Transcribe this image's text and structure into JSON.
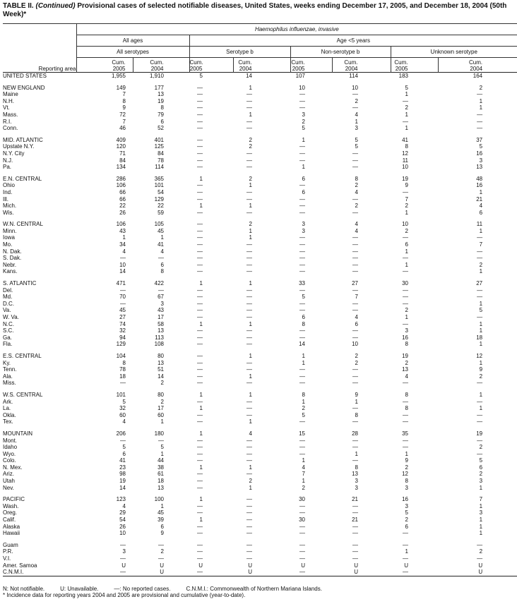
{
  "title": {
    "prefix": "TABLE II. ",
    "continued": "(Continued)",
    "text": " Provisional cases of selected notifiable diseases, United States, weeks ending December 17, 2005, and December 18, 2004 (50th Week)*"
  },
  "header": {
    "disease": "Haemophilus influenzae, invasive",
    "all_ages": "All ages",
    "age_under5": "Age <5 years",
    "all_serotypes": "All serotypes",
    "serotype_b": "Serotype b",
    "non_serotype_b": "Non-serotype b",
    "unknown_serotype": "Unknown serotype",
    "reporting_area": "Reporting area",
    "cum_cols": [
      "Cum. 2005",
      "Cum. 2004",
      "Cum. 2005",
      "Cum. 2004",
      "Cum. 2005",
      "Cum. 2004",
      "Cum. 2005",
      "Cum. 2004"
    ]
  },
  "groups": [
    [
      {
        "area": "UNITED STATES",
        "values": [
          "1,955",
          "1,910",
          "5",
          "14",
          "107",
          "114",
          "183",
          "164"
        ]
      }
    ],
    [
      {
        "area": "NEW ENGLAND",
        "values": [
          "149",
          "177",
          "—",
          "1",
          "10",
          "10",
          "5",
          "2"
        ]
      },
      {
        "area": "Maine",
        "values": [
          "7",
          "13",
          "—",
          "—",
          "—",
          "—",
          "1",
          "—"
        ]
      },
      {
        "area": "N.H.",
        "values": [
          "8",
          "19",
          "—",
          "—",
          "—",
          "2",
          "—",
          "1"
        ]
      },
      {
        "area": "Vt.",
        "values": [
          "9",
          "8",
          "—",
          "—",
          "—",
          "—",
          "2",
          "1"
        ]
      },
      {
        "area": "Mass.",
        "values": [
          "72",
          "79",
          "—",
          "1",
          "3",
          "4",
          "1",
          "—"
        ]
      },
      {
        "area": "R.I.",
        "values": [
          "7",
          "6",
          "—",
          "—",
          "2",
          "1",
          "—",
          "—"
        ]
      },
      {
        "area": "Conn.",
        "values": [
          "46",
          "52",
          "—",
          "—",
          "5",
          "3",
          "1",
          "—"
        ]
      }
    ],
    [
      {
        "area": "MID. ATLANTIC",
        "values": [
          "409",
          "401",
          "—",
          "2",
          "1",
          "5",
          "41",
          "37"
        ]
      },
      {
        "area": "Upstate N.Y.",
        "values": [
          "120",
          "125",
          "—",
          "2",
          "—",
          "5",
          "8",
          "5"
        ]
      },
      {
        "area": "N.Y. City",
        "values": [
          "71",
          "84",
          "—",
          "—",
          "—",
          "—",
          "12",
          "16"
        ]
      },
      {
        "area": "N.J.",
        "values": [
          "84",
          "78",
          "—",
          "—",
          "—",
          "—",
          "11",
          "3"
        ]
      },
      {
        "area": "Pa.",
        "values": [
          "134",
          "114",
          "—",
          "—",
          "1",
          "—",
          "10",
          "13"
        ]
      }
    ],
    [
      {
        "area": "E.N. CENTRAL",
        "values": [
          "286",
          "365",
          "1",
          "2",
          "6",
          "8",
          "19",
          "48"
        ]
      },
      {
        "area": "Ohio",
        "values": [
          "106",
          "101",
          "—",
          "1",
          "—",
          "2",
          "9",
          "16"
        ]
      },
      {
        "area": "Ind.",
        "values": [
          "66",
          "54",
          "—",
          "—",
          "6",
          "4",
          "—",
          "1"
        ]
      },
      {
        "area": "Ill.",
        "values": [
          "66",
          "129",
          "—",
          "—",
          "—",
          "—",
          "7",
          "21"
        ]
      },
      {
        "area": "Mich.",
        "values": [
          "22",
          "22",
          "1",
          "1",
          "—",
          "2",
          "2",
          "4"
        ]
      },
      {
        "area": "Wis.",
        "values": [
          "26",
          "59",
          "—",
          "—",
          "—",
          "—",
          "1",
          "6"
        ]
      }
    ],
    [
      {
        "area": "W.N. CENTRAL",
        "values": [
          "106",
          "105",
          "—",
          "2",
          "3",
          "4",
          "10",
          "11"
        ]
      },
      {
        "area": "Minn.",
        "values": [
          "43",
          "45",
          "—",
          "1",
          "3",
          "4",
          "2",
          "1"
        ]
      },
      {
        "area": "Iowa",
        "values": [
          "1",
          "1",
          "—",
          "1",
          "—",
          "—",
          "—",
          "—"
        ]
      },
      {
        "area": "Mo.",
        "values": [
          "34",
          "41",
          "—",
          "—",
          "—",
          "—",
          "6",
          "7"
        ]
      },
      {
        "area": "N. Dak.",
        "values": [
          "4",
          "4",
          "—",
          "—",
          "—",
          "—",
          "1",
          "—"
        ]
      },
      {
        "area": "S. Dak.",
        "values": [
          "—",
          "—",
          "—",
          "—",
          "—",
          "—",
          "—",
          "—"
        ]
      },
      {
        "area": "Nebr.",
        "values": [
          "10",
          "6",
          "—",
          "—",
          "—",
          "—",
          "1",
          "2"
        ]
      },
      {
        "area": "Kans.",
        "values": [
          "14",
          "8",
          "—",
          "—",
          "—",
          "—",
          "—",
          "1"
        ]
      }
    ],
    [
      {
        "area": "S. ATLANTIC",
        "values": [
          "471",
          "422",
          "1",
          "1",
          "33",
          "27",
          "30",
          "27"
        ]
      },
      {
        "area": "Del.",
        "values": [
          "—",
          "—",
          "—",
          "—",
          "—",
          "—",
          "—",
          "—"
        ]
      },
      {
        "area": "Md.",
        "values": [
          "70",
          "67",
          "—",
          "—",
          "5",
          "7",
          "—",
          "—"
        ]
      },
      {
        "area": "D.C.",
        "values": [
          "—",
          "3",
          "—",
          "—",
          "—",
          "—",
          "—",
          "1"
        ]
      },
      {
        "area": "Va.",
        "values": [
          "45",
          "43",
          "—",
          "—",
          "—",
          "—",
          "2",
          "5"
        ]
      },
      {
        "area": "W. Va.",
        "values": [
          "27",
          "17",
          "—",
          "—",
          "6",
          "4",
          "1",
          "—"
        ]
      },
      {
        "area": "N.C.",
        "values": [
          "74",
          "58",
          "1",
          "1",
          "8",
          "6",
          "—",
          "1"
        ]
      },
      {
        "area": "S.C.",
        "values": [
          "32",
          "13",
          "—",
          "—",
          "—",
          "—",
          "3",
          "1"
        ]
      },
      {
        "area": "Ga.",
        "values": [
          "94",
          "113",
          "—",
          "—",
          "—",
          "—",
          "16",
          "18"
        ]
      },
      {
        "area": "Fla.",
        "values": [
          "129",
          "108",
          "—",
          "—",
          "14",
          "10",
          "8",
          "1"
        ]
      }
    ],
    [
      {
        "area": "E.S. CENTRAL",
        "values": [
          "104",
          "80",
          "—",
          "1",
          "1",
          "2",
          "19",
          "12"
        ]
      },
      {
        "area": "Ky.",
        "values": [
          "8",
          "13",
          "—",
          "—",
          "1",
          "2",
          "2",
          "1"
        ]
      },
      {
        "area": "Tenn.",
        "values": [
          "78",
          "51",
          "—",
          "—",
          "—",
          "—",
          "13",
          "9"
        ]
      },
      {
        "area": "Ala.",
        "values": [
          "18",
          "14",
          "—",
          "1",
          "—",
          "—",
          "4",
          "2"
        ]
      },
      {
        "area": "Miss.",
        "values": [
          "—",
          "2",
          "—",
          "—",
          "—",
          "—",
          "—",
          "—"
        ]
      }
    ],
    [
      {
        "area": "W.S. CENTRAL",
        "values": [
          "101",
          "80",
          "1",
          "1",
          "8",
          "9",
          "8",
          "1"
        ]
      },
      {
        "area": "Ark.",
        "values": [
          "5",
          "2",
          "—",
          "—",
          "1",
          "1",
          "—",
          "—"
        ]
      },
      {
        "area": "La.",
        "values": [
          "32",
          "17",
          "1",
          "—",
          "2",
          "—",
          "8",
          "1"
        ]
      },
      {
        "area": "Okla.",
        "values": [
          "60",
          "60",
          "—",
          "—",
          "5",
          "8",
          "—",
          "—"
        ]
      },
      {
        "area": "Tex.",
        "values": [
          "4",
          "1",
          "—",
          "1",
          "—",
          "—",
          "—",
          "—"
        ]
      }
    ],
    [
      {
        "area": "MOUNTAIN",
        "values": [
          "206",
          "180",
          "1",
          "4",
          "15",
          "28",
          "35",
          "19"
        ]
      },
      {
        "area": "Mont.",
        "values": [
          "—",
          "—",
          "—",
          "—",
          "—",
          "—",
          "—",
          "—"
        ]
      },
      {
        "area": "Idaho",
        "values": [
          "5",
          "5",
          "—",
          "—",
          "—",
          "—",
          "—",
          "2"
        ]
      },
      {
        "area": "Wyo.",
        "values": [
          "6",
          "1",
          "—",
          "—",
          "—",
          "1",
          "1",
          "—"
        ]
      },
      {
        "area": "Colo.",
        "values": [
          "41",
          "44",
          "—",
          "—",
          "1",
          "—",
          "9",
          "5"
        ]
      },
      {
        "area": "N. Mex.",
        "values": [
          "23",
          "38",
          "1",
          "1",
          "4",
          "8",
          "2",
          "6"
        ]
      },
      {
        "area": "Ariz.",
        "values": [
          "98",
          "61",
          "—",
          "—",
          "7",
          "13",
          "12",
          "2"
        ]
      },
      {
        "area": "Utah",
        "values": [
          "19",
          "18",
          "—",
          "2",
          "1",
          "3",
          "8",
          "3"
        ]
      },
      {
        "area": "Nev.",
        "values": [
          "14",
          "13",
          "—",
          "1",
          "2",
          "3",
          "3",
          "1"
        ]
      }
    ],
    [
      {
        "area": "PACIFIC",
        "values": [
          "123",
          "100",
          "1",
          "—",
          "30",
          "21",
          "16",
          "7"
        ]
      },
      {
        "area": "Wash.",
        "values": [
          "4",
          "1",
          "—",
          "—",
          "—",
          "—",
          "3",
          "1"
        ]
      },
      {
        "area": "Oreg.",
        "values": [
          "29",
          "45",
          "—",
          "—",
          "—",
          "—",
          "5",
          "3"
        ]
      },
      {
        "area": "Calif.",
        "values": [
          "54",
          "39",
          "1",
          "—",
          "30",
          "21",
          "2",
          "1"
        ]
      },
      {
        "area": "Alaska",
        "values": [
          "26",
          "6",
          "—",
          "—",
          "—",
          "—",
          "6",
          "1"
        ]
      },
      {
        "area": "Hawaii",
        "values": [
          "10",
          "9",
          "—",
          "—",
          "—",
          "—",
          "—",
          "1"
        ]
      }
    ],
    [
      {
        "area": "Guam",
        "values": [
          "—",
          "—",
          "—",
          "—",
          "—",
          "—",
          "—",
          "—"
        ]
      },
      {
        "area": "P.R.",
        "values": [
          "3",
          "2",
          "—",
          "—",
          "—",
          "—",
          "1",
          "2"
        ]
      },
      {
        "area": "V.I.",
        "values": [
          "—",
          "—",
          "—",
          "—",
          "—",
          "—",
          "—",
          "—"
        ]
      },
      {
        "area": "Amer. Samoa",
        "values": [
          "U",
          "U",
          "U",
          "U",
          "U",
          "U",
          "U",
          "U"
        ]
      },
      {
        "area": "C.N.M.I.",
        "values": [
          "—",
          "U",
          "—",
          "U",
          "—",
          "U",
          "—",
          "U"
        ]
      }
    ]
  ],
  "footer": {
    "legend": [
      "N: Not notifiable.",
      "U: Unavailable.",
      "—: No reported cases.",
      "C.N.M.I.: Commonwealth of Northern Mariana Islands."
    ],
    "note": "* Incidence data for reporting years 2004 and 2005 are provisional and cumulative (year-to-date)."
  }
}
